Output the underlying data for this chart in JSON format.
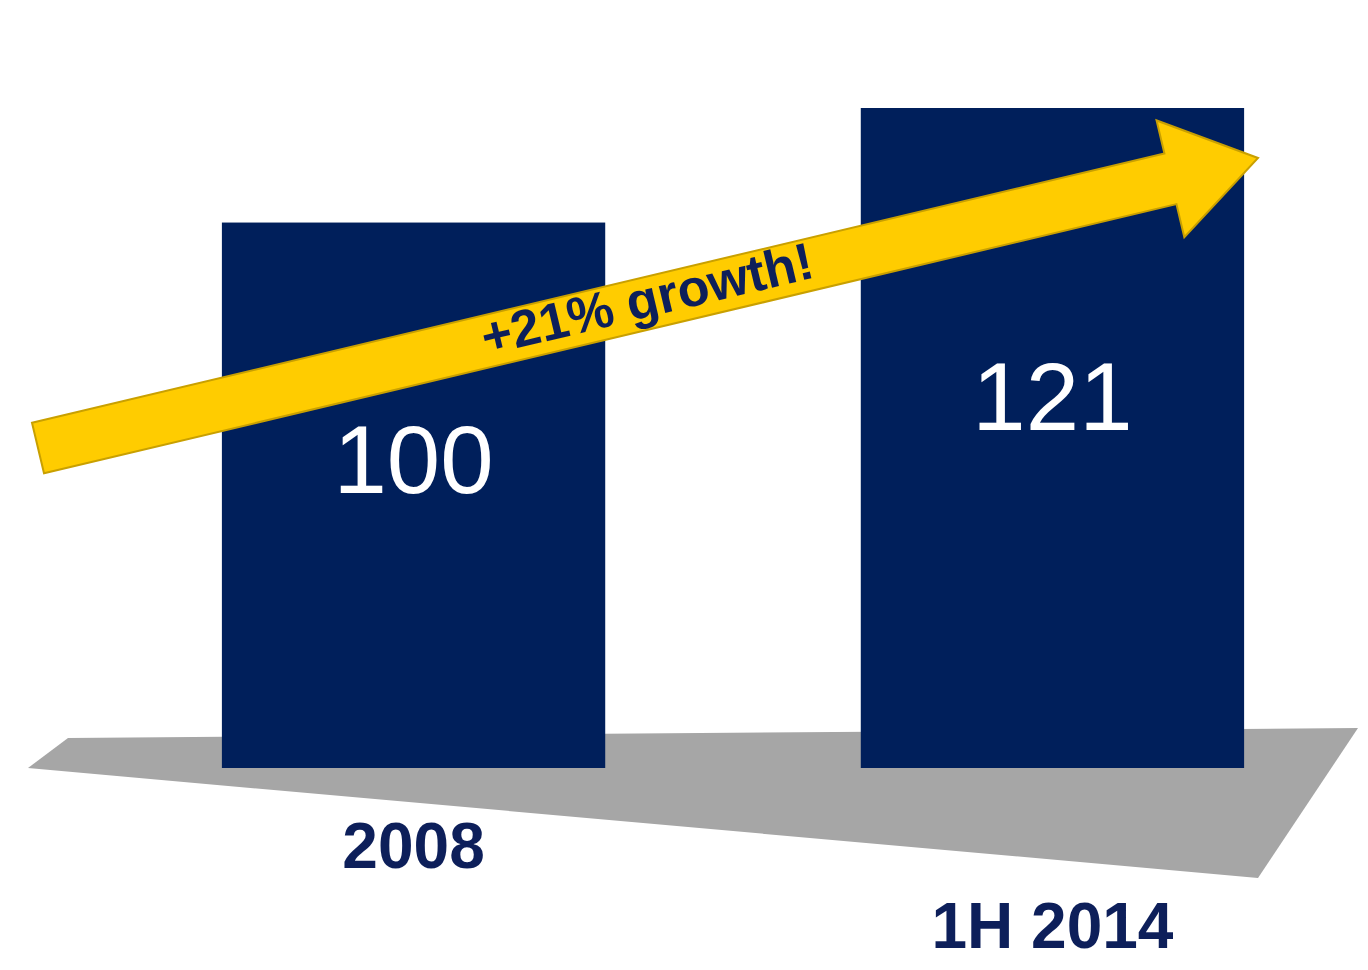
{
  "chart_data": {
    "type": "bar",
    "categories": [
      "2008",
      "1H 2014"
    ],
    "values": [
      100,
      121
    ],
    "color": "#001f5b",
    "data_labels": true,
    "annotations": [
      "+21% growth!"
    ]
  }
}
